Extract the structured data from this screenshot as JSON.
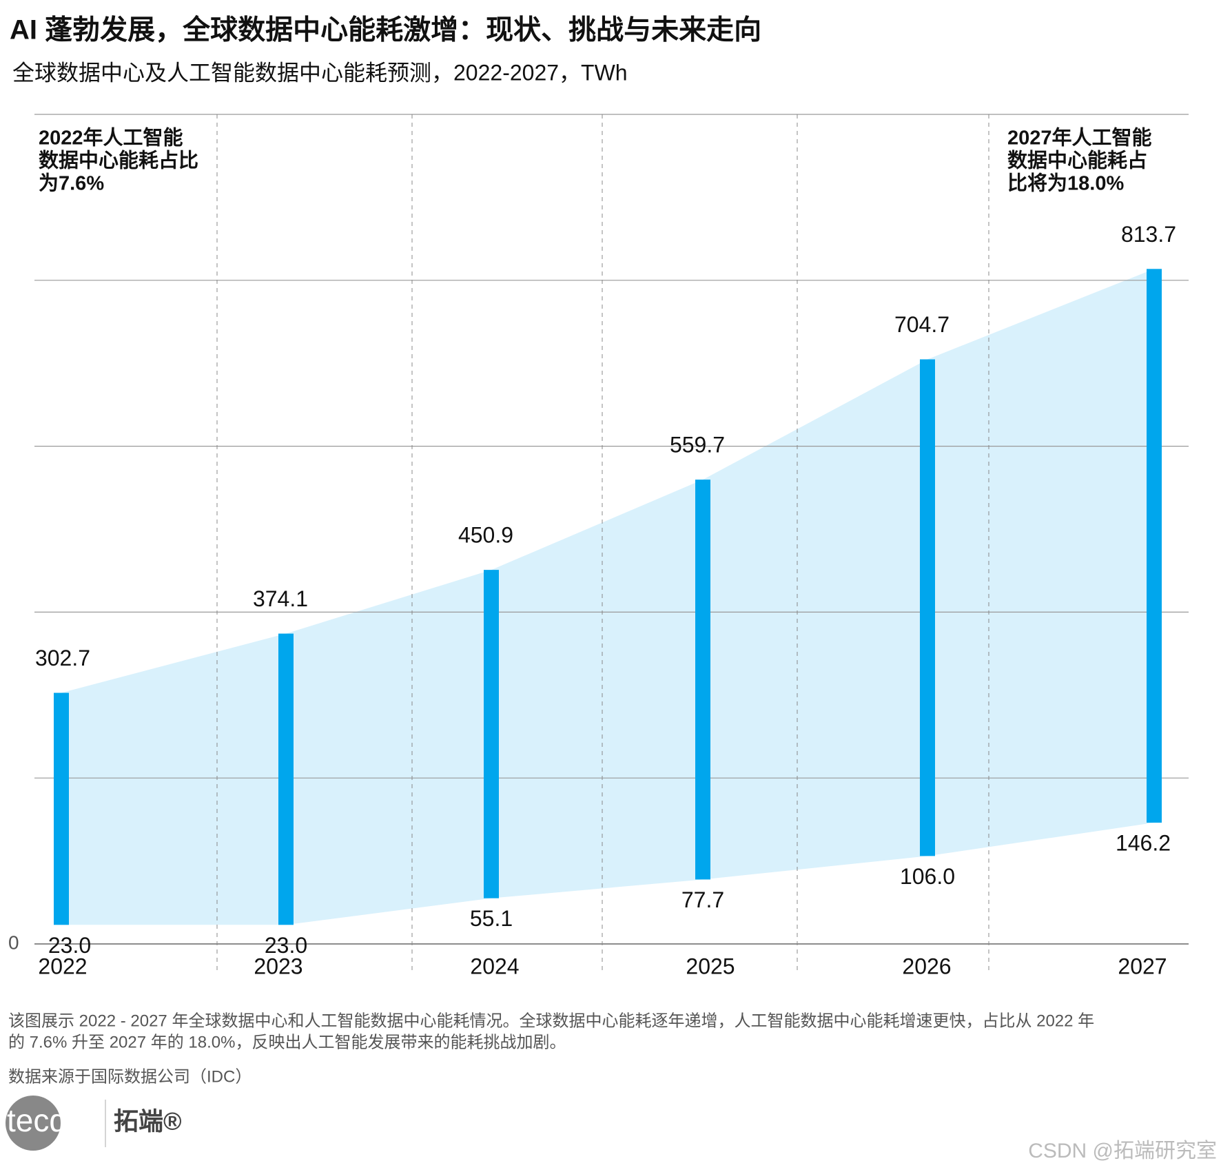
{
  "chart_data": {
    "type": "range-bar",
    "title": "AI 蓬勃发展，全球数据中心能耗激增：现状、挑战与未来走向",
    "subtitle": "全球数据中心及人工智能数据中心能耗预测，2022-2027，TWh",
    "categories": [
      "2022",
      "2023",
      "2024",
      "2025",
      "2026",
      "2027"
    ],
    "high_values": [
      302.7,
      374.1,
      450.9,
      559.7,
      704.7,
      813.7
    ],
    "low_values": [
      23.0,
      23.0,
      55.1,
      77.7,
      106.0,
      146.2
    ],
    "low_value_labels": [
      "23.0",
      "23.0",
      "55.1",
      "77.7",
      "106.0",
      "146.2"
    ],
    "color": "#00a6ed",
    "area_color": "#d9f1fc",
    "ylim": [
      0,
      1000
    ],
    "yticks": [
      0
    ],
    "ygrid": [
      200,
      400,
      600,
      800,
      1000
    ],
    "grid": true,
    "annotations": [
      [
        "2022年人工智能",
        "数据中心能耗占比",
        "为7.6%"
      ],
      [
        "2027年人工智能",
        "数据中心能耗占",
        "比将为18.0%"
      ]
    ],
    "note": [
      "该图展示 2022 - 2027 年全球数据中心和人工智能数据中心能耗情况。全球数据中心能耗逐年递增，人工智能数据中心能耗增速更快，占比从 2022 年",
      "的 7.6% 升至 2027 年的 18.0%，反映出人工智能发展带来的能耗挑战加剧。"
    ],
    "source": "数据来源于国际数据公司（IDC）",
    "logo": [
      "tecdat",
      "拓端®"
    ],
    "watermark": "CSDN @拓端研究室"
  }
}
